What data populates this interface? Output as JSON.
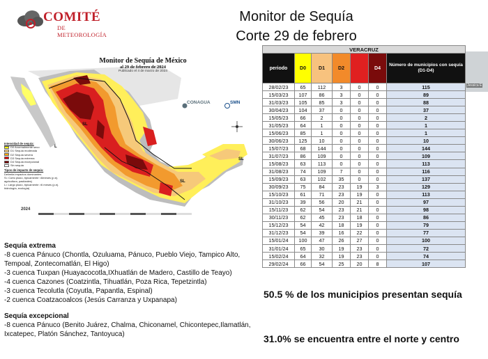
{
  "logo": {
    "brand": "COMITÉ",
    "sub": "DE METEOROLOGÍA"
  },
  "slide_title": {
    "line1": "Monitor de Sequía",
    "line2": "Corte 29 de febrero"
  },
  "map": {
    "title": "Monitor de Sequía de México",
    "date": "al 29 de febrero de 2024",
    "published": "Publicado el 4 de marzo de 2024",
    "conagua": "CONAGUA",
    "smn": "SMN",
    "year_label": "2024",
    "legend_header": "Intensidad de sequía:",
    "legend": [
      {
        "label": "D0 Anormalmente seco",
        "color": "#ffff00"
      },
      {
        "label": "D1 Sequía moderada",
        "color": "#fcd37f"
      },
      {
        "label": "D2 Sequía severa",
        "color": "#ffaa00"
      },
      {
        "label": "D3 Sequía extrema",
        "color": "#e60000"
      },
      {
        "label": "D4 Sequía excepcional",
        "color": "#730000"
      },
      {
        "label": "Sin sequía",
        "color": "#ffffff"
      }
    ],
    "impact_header": "Tipos de impacto de sequía:",
    "impact_items": [
      "Delimita impactos dominantes",
      "S= Corto plazo, típicamente <6meses (p.ej. agricultura, pastizales)",
      "L= Largo plazo, típicamente >6 meses (p.ej. hidrología, ecología)"
    ],
    "region_labels": [
      "SL",
      "SL",
      "SL",
      "L"
    ]
  },
  "bullets": {
    "heading1": "Sequía extrema",
    "items1": [
      "-8 cuenca Pánuco (Chontla, Ozuluama, Pánuco, Pueblo Viejo, Tampico Alto, Tempoal, Zontecomatlán, El Higo)",
      "-3 cuenca Tuxpan (Huayacocotla,IXhuatlán de Madero, Castillo de Teayo)",
      "-4 cuenca Cazones (Coatzintla, Tihuatlán, Poza Rica, Tepetzintla)",
      "-3 cuenca Tecolutla (Coyutla, Papantla, Espinal)",
      "-2 cuenca Coatzacoalcos (Jesús Carranza y Uxpanapa)"
    ],
    "heading2": "Sequía excepcional",
    "items2": [
      "-8 cuenca Pánuco (Benito Juárez, Chalma, Chiconamel, Chicontepec,Ilamatlán, Ixcatepec, Platón Sánchez, Tantoyuca)"
    ]
  },
  "table": {
    "state": "VERACRUZ",
    "headers": [
      "periodo",
      "D0",
      "D1",
      "D2",
      "D3",
      "D4",
      "Número de municipios con sequía (D1-D4)"
    ],
    "rows": [
      [
        "28/02/23",
        "65",
        "112",
        "3",
        "0",
        "0",
        "115"
      ],
      [
        "15/03/23",
        "107",
        "86",
        "3",
        "0",
        "0",
        "89"
      ],
      [
        "31/03/23",
        "105",
        "85",
        "3",
        "0",
        "0",
        "88"
      ],
      [
        "30/04/23",
        "104",
        "37",
        "0",
        "0",
        "0",
        "37"
      ],
      [
        "15/05/23",
        "66",
        "2",
        "0",
        "0",
        "0",
        "2"
      ],
      [
        "31/05/23",
        "64",
        "1",
        "0",
        "0",
        "0",
        "1"
      ],
      [
        "15/06/23",
        "85",
        "1",
        "0",
        "0",
        "0",
        "1"
      ],
      [
        "30/06/23",
        "125",
        "10",
        "0",
        "0",
        "0",
        "10"
      ],
      [
        "15/07/23",
        "68",
        "144",
        "0",
        "0",
        "0",
        "144"
      ],
      [
        "31/07/23",
        "86",
        "109",
        "0",
        "0",
        "0",
        "109"
      ],
      [
        "15/08/23",
        "63",
        "113",
        "0",
        "0",
        "0",
        "113"
      ],
      [
        "31/08/23",
        "74",
        "109",
        "7",
        "0",
        "0",
        "116"
      ],
      [
        "15/09/23",
        "63",
        "102",
        "35",
        "0",
        "0",
        "137"
      ],
      [
        "30/09/23",
        "75",
        "84",
        "23",
        "19",
        "3",
        "129"
      ],
      [
        "15/10/23",
        "61",
        "71",
        "23",
        "19",
        "0",
        "113"
      ],
      [
        "31/10/23",
        "39",
        "56",
        "20",
        "21",
        "0",
        "97"
      ],
      [
        "15/11/23",
        "62",
        "54",
        "23",
        "21",
        "0",
        "98"
      ],
      [
        "30/11/23",
        "62",
        "45",
        "23",
        "18",
        "0",
        "86"
      ],
      [
        "15/12/23",
        "54",
        "42",
        "18",
        "19",
        "0",
        "79"
      ],
      [
        "31/12/23",
        "54",
        "39",
        "16",
        "22",
        "0",
        "77"
      ],
      [
        "15/01/24",
        "100",
        "47",
        "26",
        "27",
        "0",
        "100"
      ],
      [
        "31/01/24",
        "65",
        "30",
        "19",
        "23",
        "0",
        "72"
      ],
      [
        "15/02/24",
        "64",
        "32",
        "19",
        "23",
        "0",
        "74"
      ],
      [
        "29/02/24",
        "66",
        "54",
        "25",
        "20",
        "8",
        "107"
      ]
    ]
  },
  "webcam": {
    "label": "Jessica E"
  },
  "stats": {
    "line1": "50.5 % de los municipios presentan sequía",
    "line2": "31.0% se encuentra entre el norte y centro"
  }
}
